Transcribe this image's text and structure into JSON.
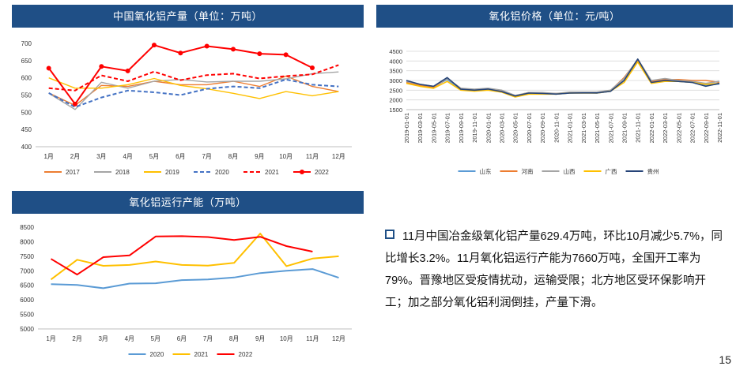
{
  "note": "11月中国冶金级氧化铝产量629.4万吨，环比10月减少5.7%，同比增长3.2%。11月氧化铝运行产能为7660万吨，全国开工率为79%。晋豫地区受疫情扰动，运输受限；北方地区受环保影响开工；加之部分氧化铝利润倒挂，产量下滑。",
  "page_number": "15",
  "chart_data": [
    {
      "type": "line",
      "title": "中国氧化铝产量（单位：万吨）",
      "categories": [
        "1月",
        "2月",
        "3月",
        "4月",
        "5月",
        "6月",
        "7月",
        "8月",
        "9月",
        "10月",
        "11月",
        "12月"
      ],
      "ylim": [
        400,
        700
      ],
      "yticks": [
        "400",
        "450",
        "500",
        "550",
        "600",
        "650",
        "700"
      ],
      "grid": false,
      "legend": "bottom",
      "series": [
        {
          "name": "2017",
          "color": "#ed7d31",
          "style": "solid",
          "values": [
            556,
            520,
            578,
            575,
            590,
            580,
            580,
            590,
            575,
            605,
            575,
            560
          ]
        },
        {
          "name": "2018",
          "color": "#a5a5a5",
          "style": "solid",
          "values": [
            555,
            508,
            587,
            570,
            590,
            595,
            588,
            590,
            590,
            597,
            612,
            617
          ]
        },
        {
          "name": "2019",
          "color": "#ffc000",
          "style": "solid",
          "values": [
            600,
            570,
            570,
            580,
            598,
            578,
            568,
            555,
            540,
            560,
            548,
            560
          ]
        },
        {
          "name": "2020",
          "color": "#4472c4",
          "style": "dashed",
          "values": [
            556,
            515,
            543,
            563,
            558,
            550,
            568,
            575,
            570,
            595,
            580,
            575
          ]
        },
        {
          "name": "2021",
          "color": "#ff0000",
          "style": "dashed",
          "values": [
            570,
            563,
            607,
            590,
            618,
            593,
            608,
            612,
            598,
            605,
            610,
            637
          ]
        },
        {
          "name": "2022",
          "color": "#ff0000",
          "style": "solid-marker",
          "values": [
            628,
            524,
            633,
            620,
            695,
            672,
            692,
            683,
            670,
            667,
            629,
            null
          ]
        }
      ]
    },
    {
      "type": "line",
      "title": "氧化铝价格（单位：元/吨）",
      "x": [
        "2019-01-01",
        "2019-03-01",
        "2019-05-01",
        "2019-07-01",
        "2019-09-01",
        "2019-11-01",
        "2020-01-01",
        "2020-03-01",
        "2020-05-01",
        "2020-07-01",
        "2020-09-01",
        "2020-11-01",
        "2021-01-01",
        "2021-03-01",
        "2021-05-01",
        "2021-07-01",
        "2021-09-01",
        "2021-11-01",
        "2022-01-01",
        "2022-03-01",
        "2022-05-01",
        "2022-07-01",
        "2022-09-01",
        "2022-11-01"
      ],
      "ylim": [
        1500,
        4500
      ],
      "yticks": [
        "1500",
        "2000",
        "2500",
        "3000",
        "3500",
        "4000",
        "4500"
      ],
      "grid": true,
      "legend": "bottom",
      "series": [
        {
          "name": "山东",
          "color": "#5b9bd5",
          "values": [
            2950,
            2750,
            2680,
            3050,
            2550,
            2500,
            2550,
            2450,
            2200,
            2350,
            2350,
            2300,
            2350,
            2380,
            2350,
            2450,
            3000,
            4050,
            2900,
            3000,
            2950,
            2900,
            2750,
            2820
          ]
        },
        {
          "name": "河南",
          "color": "#ed7d31",
          "values": [
            2900,
            2750,
            2650,
            3100,
            2600,
            2480,
            2580,
            2480,
            2200,
            2380,
            2350,
            2330,
            2370,
            2380,
            2380,
            2480,
            3150,
            4050,
            2950,
            3050,
            3050,
            3000,
            3000,
            2900
          ]
        },
        {
          "name": "山西",
          "color": "#a5a5a5",
          "values": [
            2950,
            2800,
            2700,
            3100,
            2600,
            2550,
            2600,
            2500,
            2230,
            2380,
            2380,
            2330,
            2400,
            2400,
            2400,
            2500,
            3100,
            4100,
            3000,
            3100,
            3000,
            2950,
            2850,
            2950
          ]
        },
        {
          "name": "广西",
          "color": "#ffc000",
          "values": [
            2850,
            2700,
            2600,
            2950,
            2500,
            2450,
            2500,
            2400,
            2150,
            2300,
            2300,
            2300,
            2350,
            2350,
            2350,
            2450,
            2900,
            3950,
            2850,
            2950,
            2950,
            2900,
            2800,
            2850
          ]
        },
        {
          "name": "贵州",
          "color": "#264478",
          "values": [
            3000,
            2800,
            2700,
            3150,
            2550,
            2500,
            2560,
            2430,
            2200,
            2350,
            2330,
            2300,
            2350,
            2360,
            2360,
            2440,
            3000,
            4100,
            2900,
            3000,
            2950,
            2900,
            2700,
            2850
          ]
        }
      ]
    },
    {
      "type": "line",
      "title": "氧化铝运行产能（万吨）",
      "categories": [
        "1月",
        "2月",
        "3月",
        "4月",
        "5月",
        "6月",
        "7月",
        "8月",
        "9月",
        "10月",
        "11月",
        "12月"
      ],
      "ylim": [
        5000,
        8500
      ],
      "yticks": [
        "5000",
        "5500",
        "6000",
        "6500",
        "7000",
        "7500",
        "8000",
        "8500"
      ],
      "grid": false,
      "legend": "bottom",
      "series": [
        {
          "name": "2020",
          "color": "#5b9bd5",
          "values": [
            6540,
            6510,
            6400,
            6560,
            6570,
            6680,
            6700,
            6770,
            6920,
            7000,
            7060,
            6760
          ]
        },
        {
          "name": "2021",
          "color": "#ffc000",
          "values": [
            6700,
            7380,
            7170,
            7200,
            7320,
            7200,
            7180,
            7270,
            8280,
            7160,
            7420,
            7500
          ]
        },
        {
          "name": "2022",
          "color": "#ff0000",
          "values": [
            7410,
            6870,
            7470,
            7530,
            8180,
            8190,
            8160,
            8060,
            8170,
            7850,
            7660,
            null
          ]
        }
      ]
    }
  ]
}
